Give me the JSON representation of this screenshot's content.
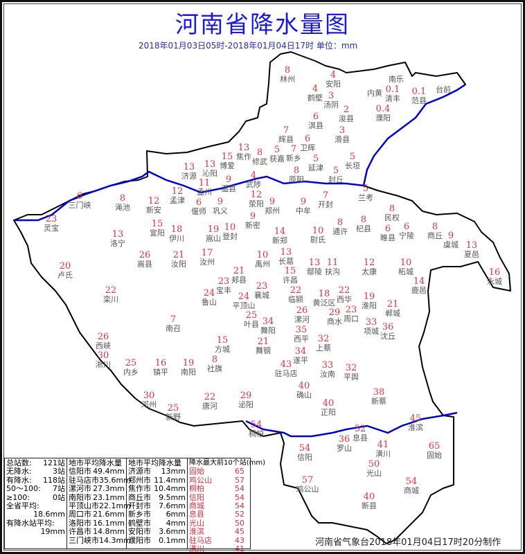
{
  "title": "河南省降水量图",
  "subtitle": "2018年01月03日05时-2018年01月04日17时   单位：mm",
  "colors": {
    "title": "#1a1ad8",
    "value": "#d8343c",
    "river": "#0000cc",
    "border": "#000000"
  },
  "stations": [
    {
      "name": "林州",
      "value": "8"
    },
    {
      "name": "安阳",
      "value": "4"
    },
    {
      "name": "鹤壁",
      "value": "4"
    },
    {
      "name": "汤阴",
      "value": "3"
    },
    {
      "name": "淇县",
      "value": "6"
    },
    {
      "name": "浚县",
      "value": "2"
    },
    {
      "name": "南乐",
      "value": ""
    },
    {
      "name": "内黄",
      "value": ""
    },
    {
      "name": "清丰",
      "value": "0.1"
    },
    {
      "name": "濮阳",
      "value": "0.4"
    },
    {
      "name": "范县",
      "value": "0.1"
    },
    {
      "name": "台前",
      "value": ""
    },
    {
      "name": "滑县",
      "value": "3"
    },
    {
      "name": "辉县",
      "value": "7"
    },
    {
      "name": "卫辉",
      "value": "6"
    },
    {
      "name": "新乡",
      "value": "7"
    },
    {
      "name": "获嘉",
      "value": "5"
    },
    {
      "name": "长垣",
      "value": "5"
    },
    {
      "name": "延津",
      "value": "5"
    },
    {
      "name": "原阳",
      "value": "8"
    },
    {
      "name": "封丘",
      "value": "5"
    },
    {
      "name": "焦作",
      "value": "13"
    },
    {
      "name": "修武",
      "value": "8"
    },
    {
      "name": "博爱",
      "value": "15"
    },
    {
      "name": "沁阳",
      "value": "13"
    },
    {
      "name": "济源",
      "value": "13"
    },
    {
      "name": "孟州",
      "value": "11"
    },
    {
      "name": "温县",
      "value": "9"
    },
    {
      "name": "武陟",
      "value": "4"
    },
    {
      "name": "孟津",
      "value": "12"
    },
    {
      "name": "偃师",
      "value": "6"
    },
    {
      "name": "巩义",
      "value": "9"
    },
    {
      "name": "荥阳",
      "value": "12"
    },
    {
      "name": "郑州",
      "value": "9"
    },
    {
      "name": "中牟",
      "value": "9"
    },
    {
      "name": "开封",
      "value": "7"
    },
    {
      "name": "兰考",
      "value": "5"
    },
    {
      "name": "新密",
      "value": "9"
    },
    {
      "name": "三门峡",
      "value": "6"
    },
    {
      "name": "灵宝",
      "value": "23"
    },
    {
      "name": "渑池",
      "value": "8"
    },
    {
      "name": "新安",
      "value": "12"
    },
    {
      "name": "宜阳",
      "value": "15"
    },
    {
      "name": "伊川",
      "value": "18"
    },
    {
      "name": "登封",
      "value": "10"
    },
    {
      "name": "嵩山",
      "value": "19"
    },
    {
      "name": "洛宁",
      "value": "13"
    },
    {
      "name": "嵩县",
      "value": "26"
    },
    {
      "name": "汝阳",
      "value": "21"
    },
    {
      "name": "汝州",
      "value": "17"
    },
    {
      "name": "新郑",
      "value": "14"
    },
    {
      "name": "尉氏",
      "value": "10"
    },
    {
      "name": "通许",
      "value": "8"
    },
    {
      "name": "杞县",
      "value": "8"
    },
    {
      "name": "民权",
      "value": "8"
    },
    {
      "name": "睢县",
      "value": "6"
    },
    {
      "name": "宁陵",
      "value": "6"
    },
    {
      "name": "商丘",
      "value": "8"
    },
    {
      "name": "虞城",
      "value": "9"
    },
    {
      "name": "夏邑",
      "value": "13"
    },
    {
      "name": "永城",
      "value": "16"
    },
    {
      "name": "卢氏",
      "value": "20"
    },
    {
      "name": "禹州",
      "value": "10"
    },
    {
      "name": "长葛",
      "value": "13"
    },
    {
      "name": "许昌",
      "value": "15"
    },
    {
      "name": "鄢陵",
      "value": "13"
    },
    {
      "name": "扶沟",
      "value": "11"
    },
    {
      "name": "太康",
      "value": "12"
    },
    {
      "name": "柘城",
      "value": "10"
    },
    {
      "name": "鹿邑",
      "value": "14"
    },
    {
      "name": "郏县",
      "value": "21"
    },
    {
      "name": "宝丰",
      "value": "23"
    },
    {
      "name": "鲁山",
      "value": "24"
    },
    {
      "name": "平顶山",
      "value": "24"
    },
    {
      "name": "叶县",
      "value": "25"
    },
    {
      "name": "襄城",
      "value": "23"
    },
    {
      "name": "临颍",
      "value": "22"
    },
    {
      "name": "黄泛区",
      "value": "18"
    },
    {
      "name": "西华",
      "value": "22"
    },
    {
      "name": "淮阳",
      "value": "19"
    },
    {
      "name": "郸城",
      "value": "21"
    },
    {
      "name": "周口",
      "value": "23"
    },
    {
      "name": "商水",
      "value": "29"
    },
    {
      "name": "漯河",
      "value": "26"
    },
    {
      "name": "舞阳",
      "value": "34"
    },
    {
      "name": "项城",
      "value": "33"
    },
    {
      "name": "沈丘",
      "value": "36"
    },
    {
      "name": "栾川",
      "value": "22"
    },
    {
      "name": "南召",
      "value": "7"
    },
    {
      "name": "西峡",
      "value": "26"
    },
    {
      "name": "淅川",
      "value": "30"
    },
    {
      "name": "内乡",
      "value": "25"
    },
    {
      "name": "镇平",
      "value": "16"
    },
    {
      "name": "南阳",
      "value": "19"
    },
    {
      "name": "方城",
      "value": "15"
    },
    {
      "name": "社旗",
      "value": "8"
    },
    {
      "name": "舞钢",
      "value": "21"
    },
    {
      "name": "西平",
      "value": "35"
    },
    {
      "name": "上蔡",
      "value": "32"
    },
    {
      "name": "遂平",
      "value": "34"
    },
    {
      "name": "驻马店",
      "value": "43"
    },
    {
      "name": "汝南",
      "value": "33"
    },
    {
      "name": "平舆",
      "value": "32"
    },
    {
      "name": "确山",
      "value": "40"
    },
    {
      "name": "新蔡",
      "value": "38"
    },
    {
      "name": "邓州",
      "value": "30"
    },
    {
      "name": "新野",
      "value": "25"
    },
    {
      "name": "唐河",
      "value": "22"
    },
    {
      "name": "泌阳",
      "value": "29"
    },
    {
      "name": "正阳",
      "value": "40"
    },
    {
      "name": "桐柏",
      "value": "54"
    },
    {
      "name": "淮滨",
      "value": "45"
    },
    {
      "name": "息县",
      "value": "52"
    },
    {
      "name": "罗山",
      "value": "36"
    },
    {
      "name": "潢川",
      "value": "41"
    },
    {
      "name": "固始",
      "value": "65"
    },
    {
      "name": "信阳",
      "value": "54"
    },
    {
      "name": "光山",
      "value": "50"
    },
    {
      "name": "鸡公山",
      "value": "57"
    },
    {
      "name": "商城",
      "value": "54"
    },
    {
      "name": "新县",
      "value": "40"
    }
  ],
  "summary": {
    "rows": [
      {
        "label": "总站数:",
        "value": "121站"
      },
      {
        "label": "无降水:",
        "value": "3站"
      },
      {
        "label": "有降水:",
        "value": "118站"
      },
      {
        "label": "50～100:",
        "value": "7站"
      },
      {
        "label": "≥100:",
        "value": "0站"
      },
      {
        "label": "全省平均:",
        "value": ""
      },
      {
        "label": "",
        "value": "18.6mm"
      },
      {
        "label": "有降水站平均:",
        "value": ""
      },
      {
        "label": "",
        "value": "19mm"
      }
    ]
  },
  "city_avg_1": {
    "header": "地市平均降水量",
    "rows": [
      {
        "city": "信阳市",
        "value": "49.4mm"
      },
      {
        "city": "驻马店市",
        "value": "35.6mm"
      },
      {
        "city": "漯河市",
        "value": "27.3mm"
      },
      {
        "city": "南阳市",
        "value": "23.1mm"
      },
      {
        "city": "平顶山市",
        "value": "22.1mm"
      },
      {
        "city": "周口市",
        "value": "21.6mm"
      },
      {
        "city": "洛阳市",
        "value": "16.1mm"
      },
      {
        "city": "许昌市",
        "value": "14.8mm"
      },
      {
        "city": "三门峡市",
        "value": "14.3mm"
      }
    ]
  },
  "city_avg_2": {
    "header": "地市平均降水量",
    "rows": [
      {
        "city": "济源市",
        "value": "13mm"
      },
      {
        "city": "郑州市",
        "value": "11.4mm"
      },
      {
        "city": "焦作市",
        "value": "10.4mm"
      },
      {
        "city": "商丘市",
        "value": "9.5mm"
      },
      {
        "city": "开封市",
        "value": "7.6mm"
      },
      {
        "city": "新乡市",
        "value": "6mm"
      },
      {
        "city": "鹤壁市",
        "value": "4mm"
      },
      {
        "city": "安阳市",
        "value": "3.6mm"
      },
      {
        "city": "濮阳市",
        "value": "0.1mm"
      }
    ]
  },
  "top10": {
    "header": "降水最大前10个站(mm)",
    "rows": [
      {
        "name": "固始",
        "value": "65"
      },
      {
        "name": "鸡公山",
        "value": "57"
      },
      {
        "name": "桐柏",
        "value": "54"
      },
      {
        "name": "信阳",
        "value": "54"
      },
      {
        "name": "商城",
        "value": "54"
      },
      {
        "name": "息县",
        "value": "52"
      },
      {
        "name": "光山",
        "value": "50"
      },
      {
        "name": "淮滨",
        "value": "45"
      },
      {
        "name": "驻马店",
        "value": "43"
      },
      {
        "name": "潢川",
        "value": "41"
      }
    ]
  },
  "footer": "河南省气象台2018年01月04日17时20分制作"
}
